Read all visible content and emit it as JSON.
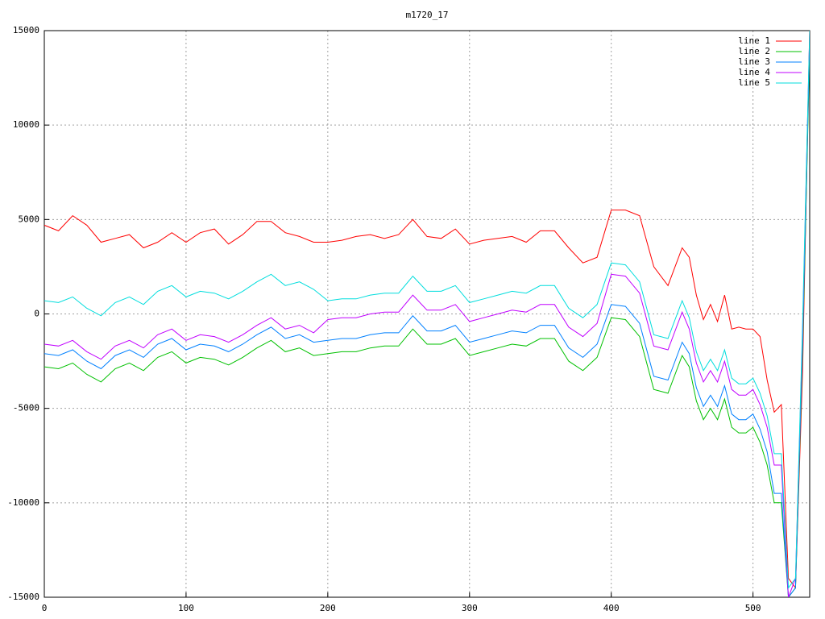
{
  "chart_data": {
    "type": "line",
    "title": "m1720_17",
    "x": [
      0,
      10,
      20,
      30,
      40,
      50,
      60,
      70,
      80,
      90,
      100,
      110,
      120,
      130,
      140,
      150,
      160,
      170,
      180,
      190,
      200,
      210,
      220,
      230,
      240,
      250,
      260,
      270,
      280,
      290,
      300,
      310,
      320,
      330,
      340,
      350,
      360,
      370,
      380,
      390,
      400,
      410,
      420,
      430,
      440,
      450,
      455,
      460,
      465,
      470,
      475,
      480,
      485,
      490,
      495,
      500,
      505,
      510,
      515,
      520,
      525,
      530,
      535,
      540
    ],
    "series": [
      {
        "name": "line 1",
        "color": "#ff0000",
        "values": [
          4700,
          4400,
          5200,
          4700,
          3800,
          4000,
          4200,
          3500,
          3800,
          4300,
          3800,
          4300,
          4500,
          3700,
          4200,
          4900,
          4900,
          4300,
          4100,
          3800,
          3800,
          3900,
          4100,
          4200,
          4000,
          4200,
          5000,
          4100,
          4000,
          4500,
          3700,
          3900,
          4000,
          4100,
          3800,
          4400,
          4400,
          3500,
          2700,
          3000,
          5500,
          5500,
          5200,
          2500,
          1500,
          3500,
          3000,
          1000,
          -300,
          500,
          -400,
          1000,
          -800,
          -700,
          -800,
          -800,
          -1200,
          -3500,
          -5200,
          -4800,
          -14000,
          -14500,
          -3000,
          15000
        ]
      },
      {
        "name": "line 2",
        "color": "#00c000",
        "values": [
          -2800,
          -2900,
          -2600,
          -3200,
          -3600,
          -2900,
          -2600,
          -3000,
          -2300,
          -2000,
          -2600,
          -2300,
          -2400,
          -2700,
          -2300,
          -1800,
          -1400,
          -2000,
          -1800,
          -2200,
          -2100,
          -2000,
          -2000,
          -1800,
          -1700,
          -1700,
          -800,
          -1600,
          -1600,
          -1300,
          -2200,
          -2000,
          -1800,
          -1600,
          -1700,
          -1300,
          -1300,
          -2500,
          -3000,
          -2300,
          -200,
          -300,
          -1200,
          -4000,
          -4200,
          -2200,
          -2800,
          -4600,
          -5600,
          -5000,
          -5600,
          -4500,
          -6000,
          -6300,
          -6300,
          -6000,
          -6800,
          -8000,
          -10000,
          -10000,
          -15000,
          -14500,
          -2000,
          14000
        ]
      },
      {
        "name": "line 3",
        "color": "#0080ff",
        "values": [
          -2100,
          -2200,
          -1900,
          -2500,
          -2900,
          -2200,
          -1900,
          -2300,
          -1600,
          -1300,
          -1900,
          -1600,
          -1700,
          -2000,
          -1600,
          -1100,
          -700,
          -1300,
          -1100,
          -1500,
          -1400,
          -1300,
          -1300,
          -1100,
          -1000,
          -1000,
          -100,
          -900,
          -900,
          -600,
          -1500,
          -1300,
          -1100,
          -900,
          -1000,
          -600,
          -600,
          -1800,
          -2300,
          -1600,
          500,
          400,
          -500,
          -3300,
          -3500,
          -1500,
          -2100,
          -3900,
          -4900,
          -4300,
          -4900,
          -3800,
          -5300,
          -5600,
          -5600,
          -5300,
          -6100,
          -7300,
          -9500,
          -9500,
          -15000,
          -14500,
          -1500,
          14500
        ]
      },
      {
        "name": "line 4",
        "color": "#c000ff",
        "values": [
          -1600,
          -1700,
          -1400,
          -2000,
          -2400,
          -1700,
          -1400,
          -1800,
          -1100,
          -800,
          -1400,
          -1100,
          -1200,
          -1500,
          -1100,
          -600,
          -200,
          -800,
          -600,
          -1000,
          -300,
          -200,
          -200,
          0,
          100,
          100,
          1000,
          200,
          200,
          500,
          -400,
          -200,
          0,
          200,
          100,
          500,
          500,
          -700,
          -1200,
          -500,
          2100,
          2000,
          1100,
          -1700,
          -1900,
          100,
          -800,
          -2600,
          -3600,
          -3000,
          -3600,
          -2500,
          -4000,
          -4300,
          -4300,
          -4000,
          -4800,
          -6000,
          -8000,
          -8000,
          -15000,
          -14000,
          -1000,
          15000
        ]
      },
      {
        "name": "line 5",
        "color": "#00dddd",
        "values": [
          700,
          600,
          900,
          300,
          -100,
          600,
          900,
          500,
          1200,
          1500,
          900,
          1200,
          1100,
          800,
          1200,
          1700,
          2100,
          1500,
          1700,
          1300,
          700,
          800,
          800,
          1000,
          1100,
          1100,
          2000,
          1200,
          1200,
          1500,
          600,
          800,
          1000,
          1200,
          1100,
          1500,
          1500,
          300,
          -200,
          500,
          2700,
          2600,
          1700,
          -1100,
          -1300,
          700,
          -200,
          -2000,
          -3000,
          -2400,
          -3000,
          -1900,
          -3400,
          -3700,
          -3700,
          -3400,
          -4200,
          -5400,
          -7400,
          -7400,
          -14500,
          -14000,
          -500,
          15000
        ]
      }
    ],
    "xlim": [
      0,
      540
    ],
    "ylim": [
      -15000,
      15000
    ],
    "xticks": [
      0,
      100,
      200,
      300,
      400,
      500
    ],
    "yticks": [
      -15000,
      -10000,
      -5000,
      0,
      5000,
      10000,
      15000
    ],
    "grid": true,
    "legend": "top-right"
  }
}
